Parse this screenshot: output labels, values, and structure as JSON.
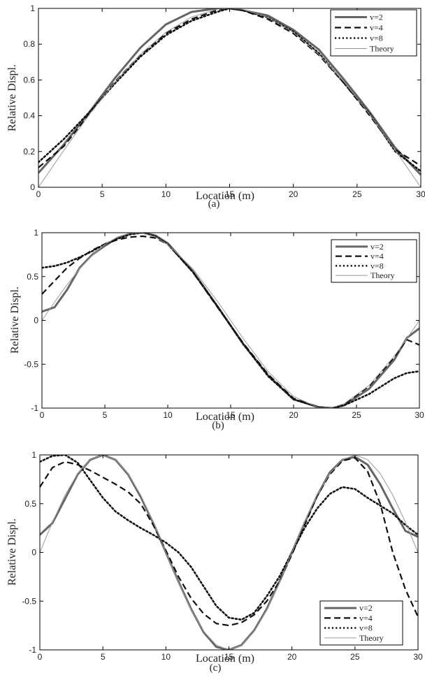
{
  "chart_data": [
    {
      "type": "line",
      "caption": "(a)",
      "xlabel": "Location (m)",
      "ylabel": "Relative Displ.",
      "xlim": [
        0,
        30
      ],
      "ylim": [
        0,
        1
      ],
      "xticks": [
        "0",
        "5",
        "10",
        "15",
        "20",
        "25",
        "30"
      ],
      "yticks": [
        "0",
        "0.2",
        "0.4",
        "0.6",
        "0.8",
        "1"
      ],
      "grid": false,
      "legend_position": "top-right",
      "series": [
        {
          "name": "v=2",
          "style": "solid-thick",
          "x": [
            0,
            2,
            4,
            6,
            8,
            10,
            12,
            14,
            15,
            16,
            18,
            20,
            22,
            24,
            26,
            28,
            30
          ],
          "y": [
            0.08,
            0.24,
            0.42,
            0.61,
            0.78,
            0.91,
            0.98,
            1.0,
            1.0,
            0.99,
            0.96,
            0.88,
            0.77,
            0.6,
            0.42,
            0.22,
            0.07
          ]
        },
        {
          "name": "v=4",
          "style": "dashed",
          "x": [
            0,
            2,
            4,
            6,
            8,
            10,
            12,
            14,
            15,
            16,
            18,
            20,
            22,
            24,
            26,
            28,
            30
          ],
          "y": [
            0.11,
            0.23,
            0.41,
            0.59,
            0.74,
            0.86,
            0.94,
            0.99,
            1.0,
            0.99,
            0.94,
            0.86,
            0.74,
            0.58,
            0.4,
            0.21,
            0.12
          ]
        },
        {
          "name": "v=8",
          "style": "dotted",
          "x": [
            0,
            2,
            4,
            6,
            8,
            10,
            12,
            14,
            15,
            16,
            18,
            20,
            22,
            24,
            26,
            28,
            30
          ],
          "y": [
            0.14,
            0.27,
            0.42,
            0.58,
            0.73,
            0.85,
            0.93,
            0.98,
            1.0,
            0.99,
            0.95,
            0.87,
            0.75,
            0.58,
            0.41,
            0.2,
            0.09
          ]
        },
        {
          "name": "Theory",
          "style": "thin",
          "x": [
            0,
            2,
            4,
            6,
            8,
            10,
            12,
            14,
            15,
            16,
            18,
            20,
            22,
            24,
            26,
            28,
            30
          ],
          "y": [
            0.0,
            0.208,
            0.407,
            0.588,
            0.743,
            0.866,
            0.951,
            0.995,
            1.0,
            0.995,
            0.951,
            0.866,
            0.743,
            0.588,
            0.407,
            0.208,
            0.0
          ]
        }
      ]
    },
    {
      "type": "line",
      "caption": "(b)",
      "xlabel": "Location (m)",
      "ylabel": "Relative Displ.",
      "xlim": [
        0,
        30
      ],
      "ylim": [
        -1,
        1
      ],
      "xticks": [
        "0",
        "5",
        "10",
        "15",
        "20",
        "25",
        "30"
      ],
      "yticks": [
        "-1",
        "-0.5",
        "0",
        "0.5",
        "1"
      ],
      "grid": false,
      "legend_position": "top-right",
      "series": [
        {
          "name": "v=2",
          "style": "solid-thick",
          "x": [
            0,
            1,
            2,
            3,
            4,
            5,
            6,
            7,
            8,
            9,
            10,
            12,
            14,
            16,
            18,
            20,
            22,
            23,
            24,
            26,
            28,
            29,
            30
          ],
          "y": [
            0.1,
            0.15,
            0.35,
            0.6,
            0.75,
            0.85,
            0.94,
            0.99,
            1.0,
            0.97,
            0.88,
            0.56,
            0.15,
            -0.27,
            -0.63,
            -0.9,
            -0.99,
            -1.0,
            -0.97,
            -0.78,
            -0.45,
            -0.2,
            -0.09
          ]
        },
        {
          "name": "v=4",
          "style": "dashed",
          "x": [
            0,
            1,
            2,
            3,
            4,
            5,
            6,
            7,
            8,
            9,
            10,
            12,
            14,
            16,
            18,
            20,
            22,
            23,
            24,
            26,
            28,
            29,
            30
          ],
          "y": [
            0.3,
            0.45,
            0.6,
            0.71,
            0.8,
            0.87,
            0.92,
            0.95,
            0.96,
            0.94,
            0.87,
            0.55,
            0.14,
            -0.26,
            -0.62,
            -0.89,
            -0.99,
            -1.0,
            -0.96,
            -0.75,
            -0.42,
            -0.22,
            -0.28
          ]
        },
        {
          "name": "v=8",
          "style": "dotted",
          "x": [
            0,
            1,
            2,
            3,
            4,
            5,
            6,
            7,
            8,
            9,
            10,
            12,
            14,
            16,
            18,
            20,
            22,
            23,
            24,
            26,
            28,
            29,
            30
          ],
          "y": [
            0.6,
            0.62,
            0.66,
            0.72,
            0.79,
            0.87,
            0.93,
            0.98,
            1.0,
            0.96,
            0.87,
            0.55,
            0.15,
            -0.27,
            -0.64,
            -0.9,
            -0.99,
            -1.0,
            -0.97,
            -0.84,
            -0.66,
            -0.6,
            -0.58
          ]
        },
        {
          "name": "Theory",
          "style": "thin",
          "x": [
            0,
            1,
            2,
            3,
            4,
            5,
            6,
            7,
            8,
            9,
            10,
            12,
            14,
            16,
            18,
            20,
            22,
            23,
            24,
            26,
            28,
            29,
            30
          ],
          "y": [
            0.0,
            0.208,
            0.407,
            0.588,
            0.743,
            0.866,
            0.951,
            0.995,
            0.995,
            0.951,
            0.866,
            0.588,
            0.208,
            -0.208,
            -0.588,
            -0.866,
            -0.995,
            -0.995,
            -0.951,
            -0.743,
            -0.407,
            -0.208,
            0.0
          ]
        }
      ]
    },
    {
      "type": "line",
      "caption": "(c)",
      "xlabel": "Location (m)",
      "ylabel": "Relative Displ.",
      "xlim": [
        0,
        30
      ],
      "ylim": [
        -1,
        1
      ],
      "xticks": [
        "0",
        "5",
        "10",
        "15",
        "20",
        "25",
        "30"
      ],
      "yticks": [
        "-1",
        "-0.5",
        "0",
        "0.5",
        "1"
      ],
      "grid": false,
      "legend_position": "bottom-right",
      "series": [
        {
          "name": "v=2",
          "style": "solid-thick",
          "x": [
            0,
            1,
            2,
            3,
            4,
            5,
            6,
            7,
            8,
            9,
            10,
            11,
            12,
            13,
            14,
            15,
            16,
            17,
            18,
            19,
            20,
            21,
            22,
            23,
            24,
            25,
            26,
            27,
            28,
            29,
            30
          ],
          "y": [
            0.18,
            0.3,
            0.55,
            0.8,
            0.95,
            1.0,
            0.95,
            0.8,
            0.57,
            0.3,
            0.0,
            -0.3,
            -0.58,
            -0.82,
            -0.97,
            -1.0,
            -0.95,
            -0.8,
            -0.58,
            -0.3,
            0.0,
            0.3,
            0.58,
            0.82,
            0.95,
            0.98,
            0.9,
            0.7,
            0.45,
            0.22,
            0.16
          ]
        },
        {
          "name": "v=4",
          "style": "dashed",
          "x": [
            0,
            1,
            2,
            3,
            4,
            5,
            6,
            7,
            8,
            9,
            10,
            11,
            12,
            13,
            14,
            15,
            16,
            17,
            18,
            19,
            20,
            21,
            22,
            23,
            24,
            25,
            26,
            27,
            28,
            29,
            30
          ],
          "y": [
            0.67,
            0.87,
            0.93,
            0.9,
            0.84,
            0.77,
            0.7,
            0.62,
            0.5,
            0.28,
            0.02,
            -0.25,
            -0.47,
            -0.63,
            -0.73,
            -0.75,
            -0.72,
            -0.64,
            -0.5,
            -0.3,
            -0.02,
            0.28,
            0.58,
            0.8,
            0.94,
            0.97,
            0.83,
            0.5,
            0.0,
            -0.38,
            -0.66
          ]
        },
        {
          "name": "v=8",
          "style": "dotted",
          "x": [
            0,
            1,
            2,
            3,
            4,
            5,
            6,
            7,
            8,
            9,
            10,
            11,
            12,
            13,
            14,
            15,
            16,
            17,
            18,
            19,
            20,
            21,
            22,
            23,
            24,
            25,
            26,
            27,
            28,
            29,
            30
          ],
          "y": [
            0.93,
            0.99,
            1.0,
            0.92,
            0.74,
            0.56,
            0.42,
            0.33,
            0.25,
            0.18,
            0.1,
            0.0,
            -0.15,
            -0.35,
            -0.55,
            -0.67,
            -0.69,
            -0.62,
            -0.45,
            -0.25,
            0.0,
            0.25,
            0.45,
            0.6,
            0.67,
            0.65,
            0.56,
            0.48,
            0.4,
            0.28,
            0.18
          ]
        },
        {
          "name": "Theory",
          "style": "thin",
          "x": [
            0,
            1,
            2,
            3,
            4,
            5,
            6,
            7,
            8,
            9,
            10,
            11,
            12,
            13,
            14,
            15,
            16,
            17,
            18,
            19,
            20,
            21,
            22,
            23,
            24,
            25,
            26,
            27,
            28,
            29,
            30
          ],
          "y": [
            0.0,
            0.309,
            0.588,
            0.809,
            0.951,
            1.0,
            0.951,
            0.809,
            0.588,
            0.309,
            0.0,
            -0.309,
            -0.588,
            -0.809,
            -0.951,
            -1.0,
            -0.951,
            -0.809,
            -0.588,
            -0.309,
            0.0,
            0.309,
            0.588,
            0.809,
            0.951,
            1.0,
            0.951,
            0.809,
            0.588,
            0.309,
            0.0
          ]
        }
      ]
    }
  ]
}
